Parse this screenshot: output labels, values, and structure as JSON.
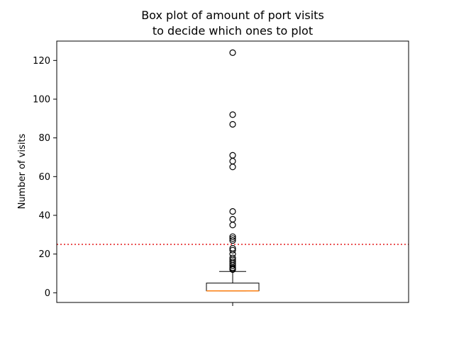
{
  "chart_data": {
    "type": "box",
    "title": [
      "Box plot of amount of port visits",
      "to decide which ones to plot"
    ],
    "xlabel": "",
    "ylabel": "Number of visits",
    "ylim": [
      -5,
      130
    ],
    "yticks": [
      0,
      20,
      40,
      60,
      80,
      100,
      120
    ],
    "grid": false,
    "box": {
      "q1": 1,
      "median": 1,
      "q3": 5,
      "whisker_low": 1,
      "whisker_high": 11,
      "outliers": [
        12,
        12.5,
        13,
        14,
        15,
        16,
        17,
        18,
        20,
        22,
        23,
        27,
        28,
        29,
        35,
        38,
        42,
        65,
        68,
        71,
        87,
        92,
        124
      ]
    },
    "threshold_line": {
      "y": 25,
      "style": "dotted",
      "color": "#e41a1c"
    },
    "colors": {
      "box": "#000000",
      "median": "#ff7f0e",
      "outlier_edge": "#000000"
    }
  }
}
